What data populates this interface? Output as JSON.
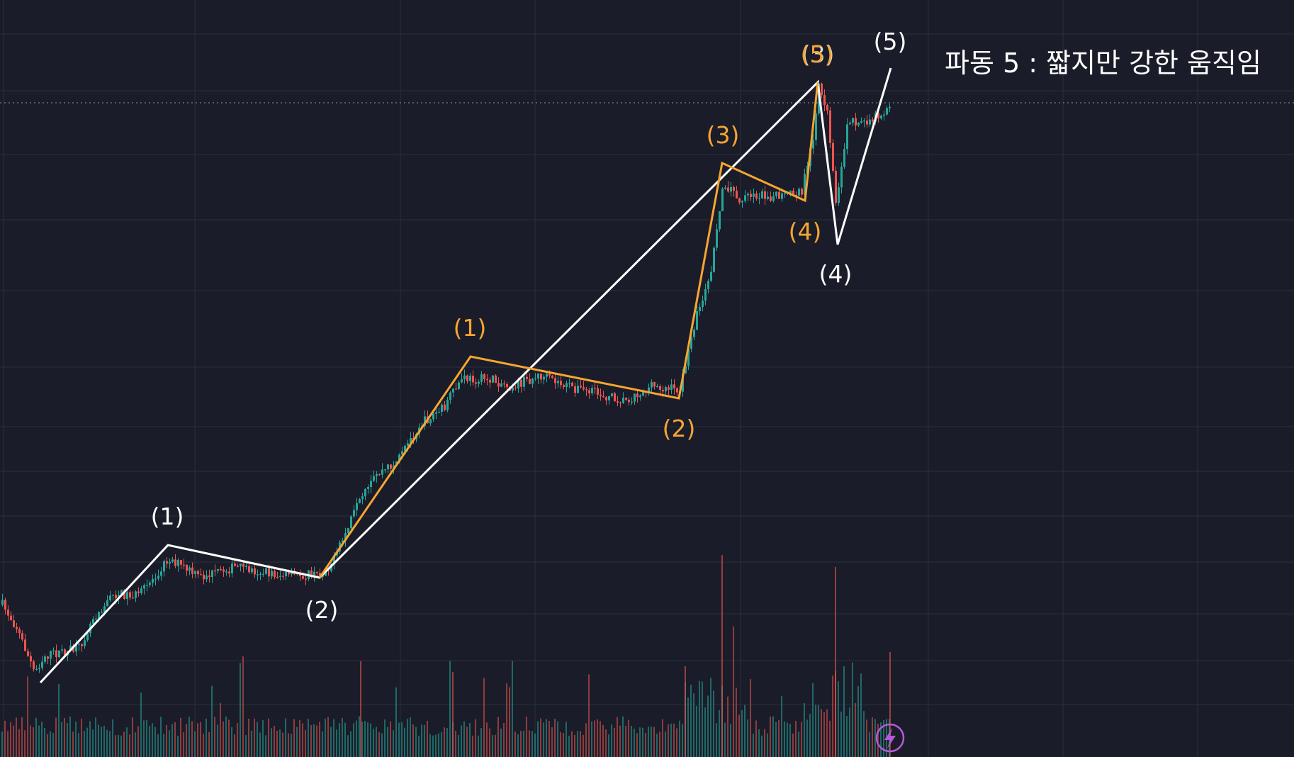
{
  "chart_data": {
    "type": "candlestick",
    "annotation": "파동 5 : 짧지만 강한 움직임",
    "price_line": {
      "style": "dotted",
      "color": "#b9bcc6"
    },
    "colors": {
      "background": "#1a1d29",
      "grid": "#2b2f3d",
      "up": "#26a69a",
      "down": "#ef5350",
      "major_wave": "#ffffff",
      "minor_wave": "#f7a531",
      "flash_icon": "#b45ad9"
    },
    "major_wave": {
      "labels": [
        "(1)",
        "(2)",
        "(3)",
        "(4)",
        "(5)"
      ]
    },
    "minor_wave": {
      "labels": [
        "(1)",
        "(2)",
        "(3)",
        "(4)",
        "(5)"
      ]
    },
    "indicator_icon": "lightning-icon",
    "has_volume_panel": true,
    "grid": true
  }
}
